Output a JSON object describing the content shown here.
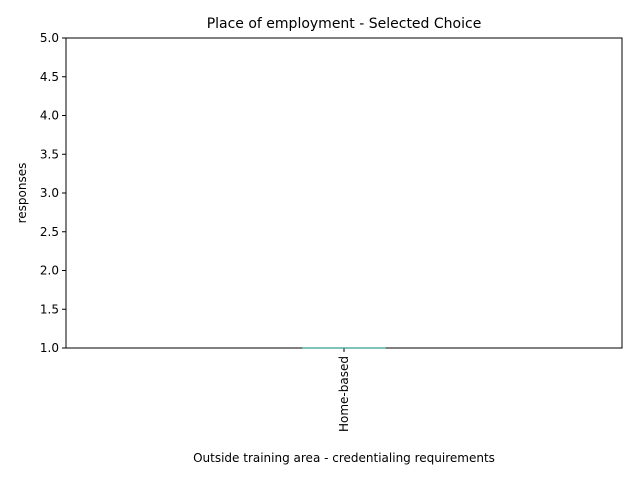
{
  "chart_data": {
    "type": "bar",
    "title": "Place of employment - Selected Choice",
    "xlabel": "Outside training area - credentialing requirements",
    "ylabel": "responses",
    "categories": [
      "Home-based"
    ],
    "values": [
      1
    ],
    "ylim": [
      1.0,
      5.0
    ],
    "yticks": [
      "1.0",
      "1.5",
      "2.0",
      "2.5",
      "3.0",
      "3.5",
      "4.0",
      "4.5",
      "5.0"
    ],
    "grid": false,
    "legend": "none",
    "colors": {
      "bar": "#2a9d8f",
      "axis": "#000000"
    }
  }
}
